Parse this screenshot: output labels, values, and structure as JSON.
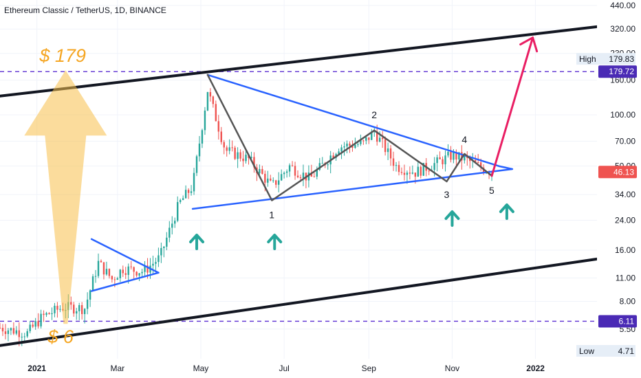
{
  "header": {
    "title": "Ethereum Classic / TetherUS, 1D, BINANCE"
  },
  "price_scale": {
    "ticks": [
      "440.00",
      "320.00",
      "230.00",
      "160.00",
      "100.00",
      "70.00",
      "50.00",
      "34.00",
      "24.00",
      "16.00",
      "11.00",
      "8.00",
      "5.50"
    ],
    "high_label": "High",
    "high_value": "179.83",
    "level_high": "179.72",
    "current": "46.13",
    "level_low": "6.11",
    "low_label": "Low",
    "low_value": "4.71"
  },
  "time_axis": {
    "labels": [
      "2021",
      "Mar",
      "May",
      "Jul",
      "Sep",
      "Nov",
      "2022"
    ]
  },
  "annotations": {
    "target_label": "$ 179",
    "start_label": "$ 6",
    "wave_labels": [
      "1",
      "2",
      "3",
      "4",
      "5"
    ]
  },
  "colors": {
    "candle_up": "#26a69a",
    "candle_down": "#ef5350",
    "channel": "#131722",
    "triangle": "#2962ff",
    "waves": "#555555",
    "dashed_levels": "#5b2fd1",
    "big_arrow": "#f7c04a",
    "big_arrow_text": "#f5a623",
    "breakout_arrow": "#e91e63",
    "small_arrows": "#26a69a",
    "current_badge": "#ef5350",
    "level_badge": "#4a2ab5"
  },
  "chart_data": {
    "type": "candlestick",
    "title": "Ethereum Classic / TetherUS, 1D, BINANCE",
    "scale": "log",
    "ylim": [
      4.0,
      440.0
    ],
    "xlim": [
      "2020-12-05",
      "2022-02-15"
    ],
    "x_ticks": [
      "2021",
      "Mar",
      "May",
      "Jul",
      "Sep",
      "Nov",
      "2022"
    ],
    "y_ticks": [
      440,
      320,
      230,
      160,
      100,
      70,
      50,
      34,
      24,
      16,
      11,
      8,
      5.5
    ],
    "horizontal_levels": [
      179.72,
      6.11
    ],
    "high": 179.83,
    "low": 4.71,
    "last": 46.13,
    "price_path": [
      [
        "2020-12-05",
        5.6
      ],
      [
        "2020-12-25",
        5.2
      ],
      [
        "2021-01-05",
        6.5
      ],
      [
        "2021-01-20",
        7.4
      ],
      [
        "2021-02-05",
        7.3
      ],
      [
        "2021-02-15",
        13.5
      ],
      [
        "2021-02-25",
        10.8
      ],
      [
        "2021-03-05",
        12.5
      ],
      [
        "2021-03-20",
        12.0
      ],
      [
        "2021-04-01",
        14.5
      ],
      [
        "2021-04-15",
        30
      ],
      [
        "2021-04-25",
        38
      ],
      [
        "2021-05-06",
        140
      ],
      [
        "2021-05-19",
        62
      ],
      [
        "2021-06-05",
        55
      ],
      [
        "2021-06-22",
        38
      ],
      [
        "2021-07-05",
        50
      ],
      [
        "2021-07-20",
        42
      ],
      [
        "2021-08-10",
        65
      ],
      [
        "2021-08-28",
        68
      ],
      [
        "2021-09-05",
        80
      ],
      [
        "2021-09-21",
        50
      ],
      [
        "2021-10-05",
        46
      ],
      [
        "2021-10-20",
        52
      ],
      [
        "2021-11-01",
        58
      ],
      [
        "2021-11-10",
        55
      ],
      [
        "2021-11-25",
        48
      ],
      [
        "2021-12-01",
        46.13
      ]
    ],
    "trendlines": [
      {
        "name": "channel-top",
        "points": [
          [
            "2020-12-05",
            129
          ],
          [
            "2022-02-15",
            330
          ]
        ]
      },
      {
        "name": "channel-bottom",
        "points": [
          [
            "2020-12-05",
            4.4
          ],
          [
            "2022-02-15",
            14.2
          ]
        ]
      },
      {
        "name": "triangle-top",
        "points": [
          [
            "2021-05-06",
            172
          ],
          [
            "2021-12-05",
            50
          ]
        ]
      },
      {
        "name": "triangle-bottom",
        "points": [
          [
            "2021-04-25",
            28.0
          ],
          [
            "2021-12-15",
            48
          ]
        ]
      },
      {
        "name": "small-triangle-top",
        "points": [
          [
            "2021-02-10",
            18.6
          ],
          [
            "2021-03-31",
            11.8
          ]
        ]
      },
      {
        "name": "small-triangle-bottom",
        "points": [
          [
            "2021-02-10",
            9.2
          ],
          [
            "2021-03-31",
            11.8
          ]
        ]
      },
      {
        "name": "waves",
        "points": [
          [
            "2021-05-06",
            172
          ],
          [
            "2021-06-22",
            31.4
          ],
          [
            "2021-09-05",
            81
          ],
          [
            "2021-10-28",
            40.6
          ],
          [
            "2021-11-10",
            59
          ],
          [
            "2021-11-30",
            43.8
          ]
        ]
      },
      {
        "name": "breakout-projection",
        "points": [
          [
            "2021-11-30",
            43.8
          ],
          [
            "2021-12-30",
            285
          ]
        ]
      }
    ]
  }
}
